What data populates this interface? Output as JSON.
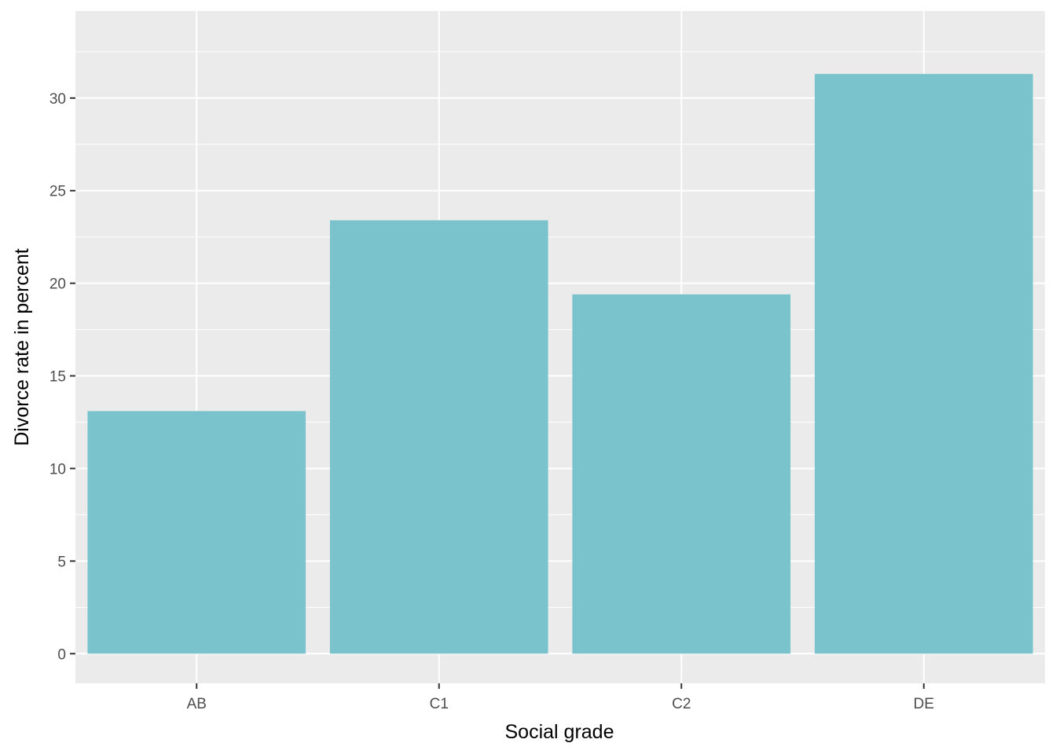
{
  "chart_data": {
    "type": "bar",
    "title": "",
    "xlabel": "Social grade",
    "ylabel": "Divorce rate in percent",
    "categories": [
      "AB",
      "C1",
      "C2",
      "DE"
    ],
    "values": [
      13.1,
      23.4,
      19.4,
      31.3
    ],
    "ylim": [
      -1.6,
      34.7
    ],
    "yticks": [
      0,
      5,
      10,
      15,
      20,
      25,
      30
    ],
    "ytick_labels": [
      "0",
      "5",
      "10",
      "15",
      "20",
      "25",
      "30"
    ],
    "grid": true,
    "legend": "none",
    "colors": {
      "bar": "#7bc3cc",
      "panel": "#ebebeb",
      "grid": "#ffffff",
      "tick": "#333333"
    }
  }
}
